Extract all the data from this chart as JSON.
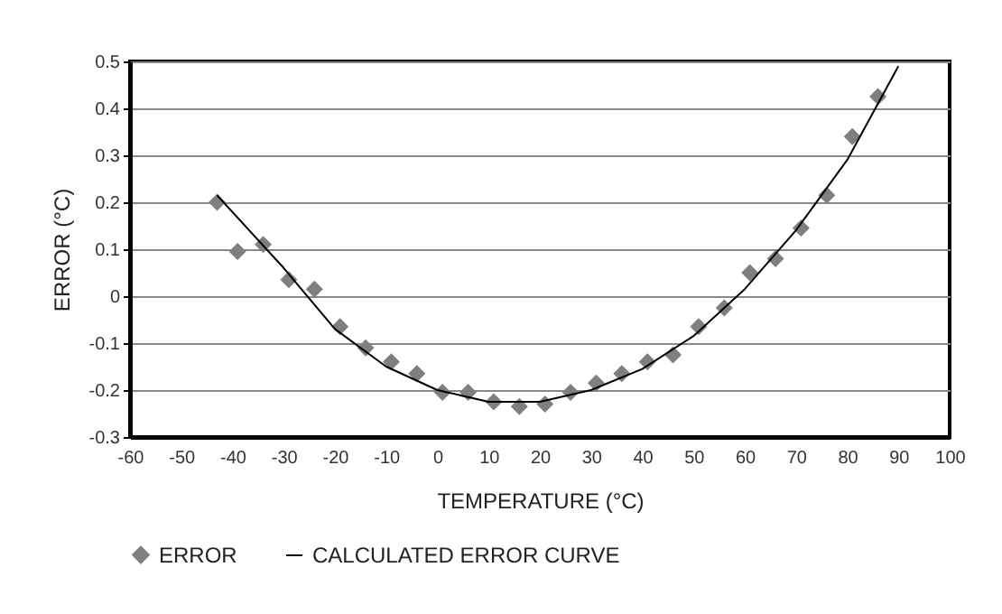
{
  "chart_data": {
    "type": "scatter",
    "xlabel": "TEMPERATURE (°C)",
    "ylabel": "ERROR (°C)",
    "xlim": [
      -60,
      100
    ],
    "xticks": [
      -60,
      -50,
      -40,
      -30,
      -20,
      -10,
      0,
      10,
      20,
      30,
      40,
      50,
      60,
      70,
      80,
      90,
      100
    ],
    "ylim": [
      -0.3,
      0.5
    ],
    "yticks": [
      -0.3,
      -0.2,
      -0.1,
      0,
      0.1,
      0.2,
      0.3,
      0.4,
      0.5
    ],
    "grid": "y",
    "legend": "bottom",
    "series": [
      {
        "name": "ERROR",
        "marker": "diamond",
        "color": "#7f7f7f",
        "x": [
          -43,
          -39,
          -34,
          -29,
          -24,
          -19,
          -14,
          -9,
          -4,
          1,
          6,
          11,
          16,
          21,
          26,
          31,
          36,
          41,
          46,
          51,
          56,
          61,
          66,
          71,
          76,
          81,
          86
        ],
        "values": [
          0.2,
          0.095,
          0.11,
          0.035,
          0.015,
          -0.065,
          -0.11,
          -0.14,
          -0.165,
          -0.205,
          -0.205,
          -0.225,
          -0.235,
          -0.23,
          -0.205,
          -0.185,
          -0.165,
          -0.14,
          -0.125,
          -0.065,
          -0.025,
          0.05,
          0.08,
          0.145,
          0.215,
          0.34,
          0.425
        ]
      },
      {
        "name": "CALCULATED ERROR CURVE",
        "type": "line",
        "marker": "none",
        "line_style": "solid",
        "color": "#000000",
        "x": [
          -43,
          -30,
          -20,
          -10,
          0,
          10,
          20,
          30,
          40,
          50,
          60,
          70,
          80,
          90
        ],
        "values": [
          0.215,
          0.06,
          -0.07,
          -0.15,
          -0.2,
          -0.225,
          -0.225,
          -0.2,
          -0.155,
          -0.085,
          0.015,
          0.14,
          0.29,
          0.49
        ]
      }
    ]
  }
}
